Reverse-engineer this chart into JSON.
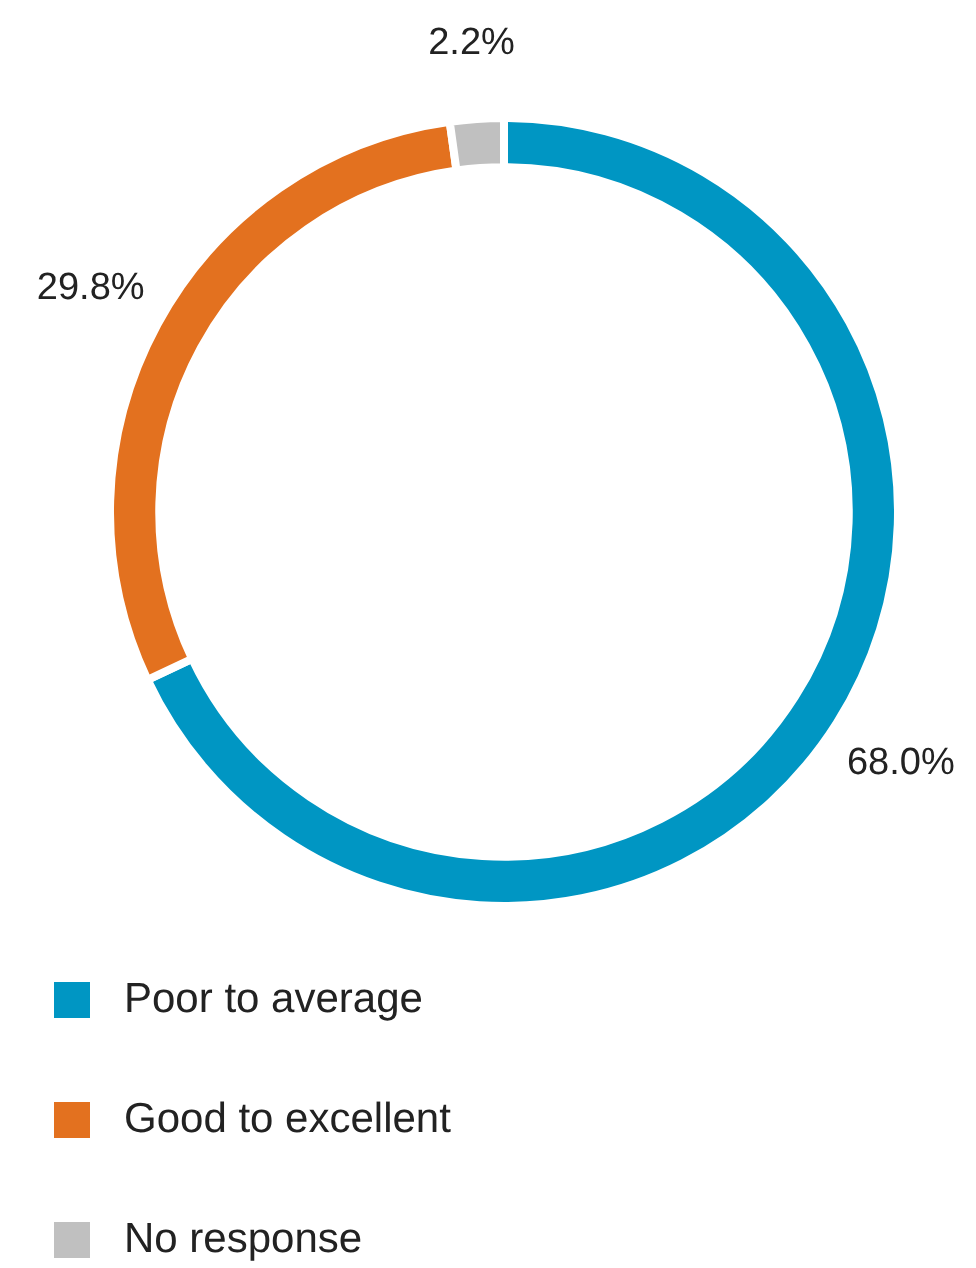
{
  "chart_data": {
    "type": "donut",
    "categories": [
      "Poor to average",
      "Good to excellent",
      "No response"
    ],
    "values": [
      68.0,
      29.8,
      2.2
    ],
    "colors": [
      "#0096c3",
      "#e3711f",
      "#c0c0c0"
    ],
    "value_labels": [
      "68.0%",
      "29.8%",
      "2.2%"
    ],
    "legend": "bottom"
  }
}
